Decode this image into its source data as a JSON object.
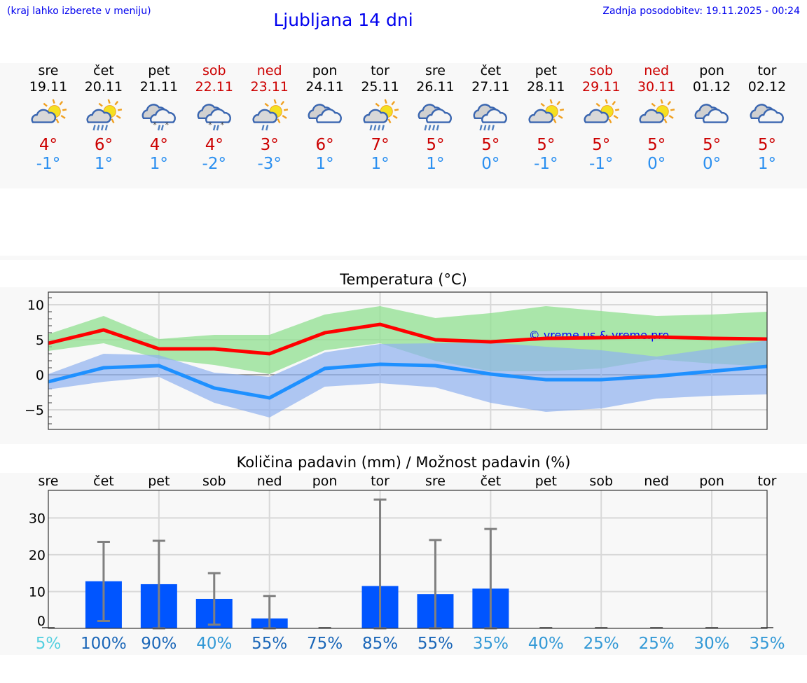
{
  "header": {
    "hint": "(kraj lahko izberete v meniju)",
    "title": "Ljubljana 14 dni",
    "updated": "Zadnja posodobitev: 19.11.2025 - 00:24"
  },
  "days": [
    {
      "name": "sre",
      "date": "19.11",
      "weekend": false,
      "icon": "sun-cloud",
      "max": "4°",
      "min": "-1°"
    },
    {
      "name": "čet",
      "date": "20.11",
      "weekend": false,
      "icon": "sun-cloud-rain",
      "max": "6°",
      "min": "1°"
    },
    {
      "name": "pet",
      "date": "21.11",
      "weekend": false,
      "icon": "clouds-sleet",
      "max": "4°",
      "min": "1°"
    },
    {
      "name": "sob",
      "date": "22.11",
      "weekend": true,
      "icon": "clouds-sleet",
      "max": "4°",
      "min": "-2°"
    },
    {
      "name": "ned",
      "date": "23.11",
      "weekend": true,
      "icon": "sun-cloud-light-rain",
      "max": "3°",
      "min": "-3°"
    },
    {
      "name": "pon",
      "date": "24.11",
      "weekend": false,
      "icon": "clouds",
      "max": "6°",
      "min": "1°"
    },
    {
      "name": "tor",
      "date": "25.11",
      "weekend": false,
      "icon": "sun-cloud-rain",
      "max": "7°",
      "min": "1°"
    },
    {
      "name": "sre",
      "date": "26.11",
      "weekend": false,
      "icon": "clouds-rain",
      "max": "5°",
      "min": "1°"
    },
    {
      "name": "čet",
      "date": "27.11",
      "weekend": false,
      "icon": "clouds-rain",
      "max": "5°",
      "min": "0°"
    },
    {
      "name": "pet",
      "date": "28.11",
      "weekend": false,
      "icon": "sun-cloud",
      "max": "5°",
      "min": "-1°"
    },
    {
      "name": "sob",
      "date": "29.11",
      "weekend": true,
      "icon": "sun-cloud",
      "max": "5°",
      "min": "-1°"
    },
    {
      "name": "ned",
      "date": "30.11",
      "weekend": true,
      "icon": "sun-cloud",
      "max": "5°",
      "min": "0°"
    },
    {
      "name": "pon",
      "date": "01.12",
      "weekend": false,
      "icon": "clouds",
      "max": "5°",
      "min": "0°"
    },
    {
      "name": "tor",
      "date": "02.12",
      "weekend": false,
      "icon": "clouds",
      "max": "5°",
      "min": "1°"
    }
  ],
  "colors": {
    "max": "#ff0000",
    "min": "#1e90ff",
    "max_band": "#90e090",
    "min_band": "#8fb0f0",
    "bar": "#0055ff",
    "errbar": "#808080"
  },
  "chart_data": [
    {
      "type": "line",
      "title": "Temperatura (°C)",
      "watermark": "© vreme.us & vreme.pro",
      "categories": [
        "19.11",
        "20.11",
        "21.11",
        "22.11",
        "23.11",
        "24.11",
        "25.11",
        "26.11",
        "27.11",
        "28.11",
        "29.11",
        "30.11",
        "01.12",
        "02.12"
      ],
      "ylim": [
        -7.8,
        11.8
      ],
      "yticks": [
        -5,
        0,
        5,
        10
      ],
      "grid": true,
      "series": [
        {
          "values": [
            4.5,
            6.4,
            3.7,
            3.7,
            3.0,
            6.0,
            7.2,
            5.0,
            4.7,
            5.2,
            5.3,
            5.4,
            5.2,
            5.1
          ],
          "band_upper": [
            5.8,
            8.4,
            5.1,
            5.7,
            5.7,
            8.6,
            9.8,
            8.1,
            8.8,
            9.8,
            9.1,
            8.4,
            8.6,
            9.0
          ],
          "band_lower": [
            3.4,
            4.5,
            2.3,
            1.4,
            0.1,
            3.5,
            4.5,
            2.0,
            0.5,
            0.5,
            0.9,
            2.2,
            1.6,
            1.2
          ]
        },
        {
          "values": [
            -1.0,
            1.0,
            1.3,
            -1.9,
            -3.3,
            0.9,
            1.5,
            1.3,
            0.1,
            -0.7,
            -0.7,
            -0.2,
            0.5,
            1.2
          ],
          "band_upper": [
            0.1,
            3.0,
            2.8,
            0.3,
            -0.3,
            3.2,
            4.4,
            4.5,
            4.6,
            4.0,
            3.5,
            2.6,
            3.7,
            4.9
          ],
          "band_lower": [
            -2.1,
            -1.0,
            -0.3,
            -4.0,
            -6.1,
            -1.7,
            -1.2,
            -1.8,
            -4.0,
            -5.3,
            -4.8,
            -3.4,
            -3.0,
            -2.8
          ]
        }
      ]
    },
    {
      "type": "bar",
      "title": "Količina padavin (mm) / Možnost padavin (%)",
      "categories": [
        "sre",
        "čet",
        "pet",
        "sob",
        "ned",
        "pon",
        "tor",
        "sre",
        "čet",
        "pet",
        "sob",
        "ned",
        "pon",
        "tor"
      ],
      "values": [
        0,
        12.8,
        12,
        8,
        2.7,
        0,
        11.5,
        9.3,
        10.8,
        0,
        0,
        0,
        0,
        0
      ],
      "err_low": [
        0,
        2,
        0,
        1,
        0,
        0,
        0,
        0,
        0,
        0,
        0,
        0,
        0,
        0
      ],
      "err_high": [
        0,
        23.5,
        23.8,
        15,
        8.8,
        0,
        35,
        24,
        27,
        0,
        0,
        0,
        0,
        0
      ],
      "probability": [
        "5%",
        "100%",
        "90%",
        "40%",
        "55%",
        "75%",
        "85%",
        "55%",
        "35%",
        "40%",
        "25%",
        "25%",
        "30%",
        "35%"
      ],
      "probability_colors": [
        "#55d0e0",
        "#1a66b8",
        "#1a66b8",
        "#3399d6",
        "#1a66b8",
        "#1a66b8",
        "#1a66b8",
        "#1a66b8",
        "#3399d6",
        "#3399d6",
        "#3399d6",
        "#3399d6",
        "#3399d6",
        "#3399d6"
      ],
      "ylim": [
        0,
        37.5
      ],
      "yticks": [
        0,
        10,
        20,
        30
      ],
      "grid": true
    }
  ]
}
